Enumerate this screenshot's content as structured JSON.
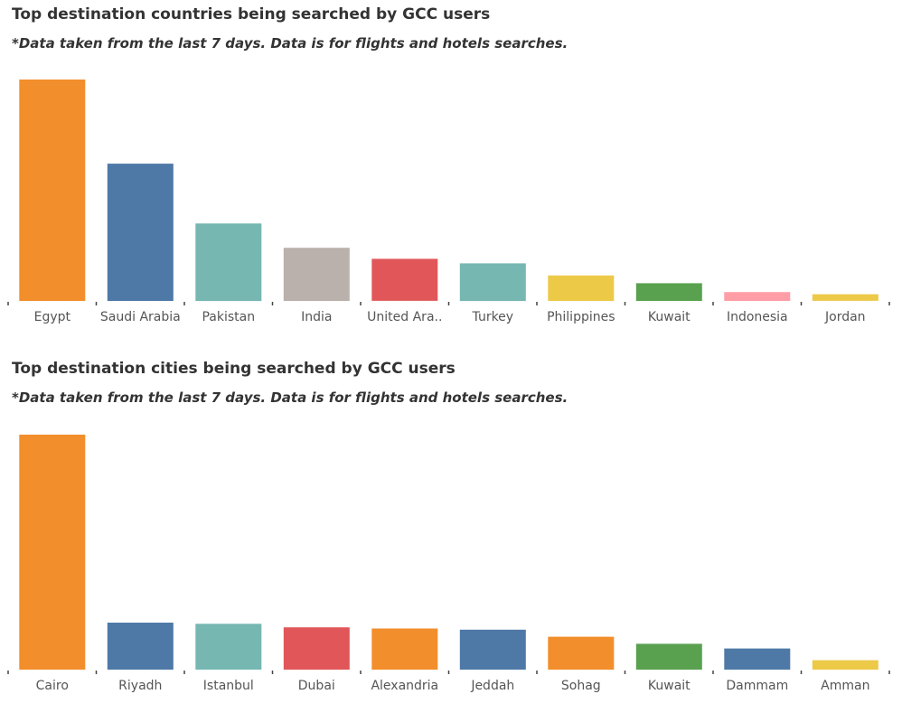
{
  "chart_data": [
    {
      "type": "bar",
      "title": "Top destination countries being searched by GCC users",
      "subtitle": "*Data taken from the last 7 days. Data is for flights and hotels searches.",
      "categories": [
        "Egypt",
        "Saudi Arabia",
        "Pakistan",
        "India",
        "United Ara..",
        "Turkey",
        "Philippines",
        "Kuwait",
        "Indonesia",
        "Jordan"
      ],
      "values": [
        100,
        62,
        35,
        24,
        19,
        17,
        11.5,
        8,
        4,
        3
      ],
      "colors": [
        "#f28e2b",
        "#4e79a7",
        "#76b7b2",
        "#bab0ac",
        "#e15759",
        "#76b7b2",
        "#edc948",
        "#59a14f",
        "#ff9da7",
        "#edc948"
      ],
      "ylim": [
        0,
        100
      ],
      "y_axis_shown": false,
      "grid": false,
      "legend": "none"
    },
    {
      "type": "bar",
      "title": "Top destination cities being searched by GCC users",
      "subtitle": "*Data taken from the last 7 days. Data is for flights and hotels searches.",
      "categories": [
        "Cairo",
        "Riyadh",
        "Istanbul",
        "Dubai",
        "Alexandria",
        "Jeddah",
        "Sohag",
        "Kuwait",
        "Dammam",
        "Amman"
      ],
      "values": [
        100,
        20,
        19.5,
        18,
        17.5,
        17,
        14,
        11,
        9,
        4
      ],
      "colors": [
        "#f28e2b",
        "#4e79a7",
        "#76b7b2",
        "#e15759",
        "#f28e2b",
        "#4e79a7",
        "#f28e2b",
        "#59a14f",
        "#4e79a7",
        "#edc948"
      ],
      "ylim": [
        0,
        100
      ],
      "y_axis_shown": false,
      "grid": false,
      "legend": "none"
    }
  ]
}
